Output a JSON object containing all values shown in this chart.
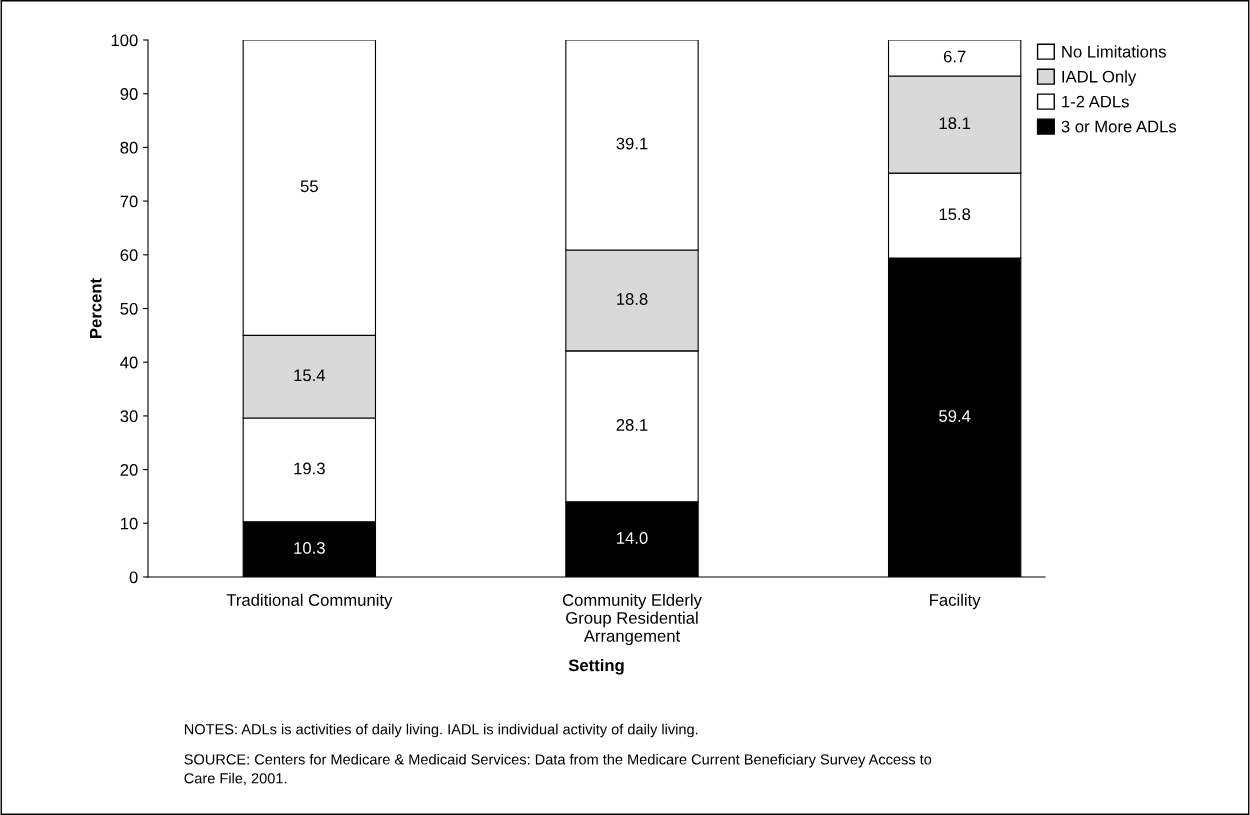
{
  "chart_data": {
    "type": "bar",
    "stacked": true,
    "xlabel": "Setting",
    "ylabel": "Percent",
    "categories": [
      "Traditional Community",
      "Community Elderly\nGroup Residential\nArrangement",
      "Facility"
    ],
    "series": [
      {
        "name": "3 or More ADLs",
        "color": "#000000",
        "values": [
          10.3,
          14.0,
          59.4
        ],
        "value_labels": [
          "10.3",
          "14.0",
          "59.4"
        ]
      },
      {
        "name": "1-2 ADLs",
        "color": "#ffffff",
        "values": [
          19.3,
          28.1,
          15.8
        ],
        "value_labels": [
          "19.3",
          "28.1",
          "15.8"
        ]
      },
      {
        "name": "IADL Only",
        "color": "#d9d9d9",
        "values": [
          15.4,
          18.8,
          18.1
        ],
        "value_labels": [
          "15.4",
          "18.8",
          "18.1"
        ]
      },
      {
        "name": "No Limitations",
        "color": "#ffffff",
        "values": [
          55,
          39.1,
          6.7
        ],
        "value_labels": [
          "55",
          "39.1",
          "6.7"
        ]
      }
    ],
    "ylim": [
      0,
      100
    ],
    "yticks": [
      0,
      10,
      20,
      30,
      40,
      50,
      60,
      70,
      80,
      90,
      100
    ],
    "grid": false,
    "legend": "top right",
    "annotations": [
      "NOTES: ADLs is activities of daily living. IADL is individual activity of daily living.",
      "SOURCE: Centers for Medicare & Medicaid Services: Data from the Medicare Current Beneficiary Survey Access to\nCare File, 2001."
    ]
  }
}
